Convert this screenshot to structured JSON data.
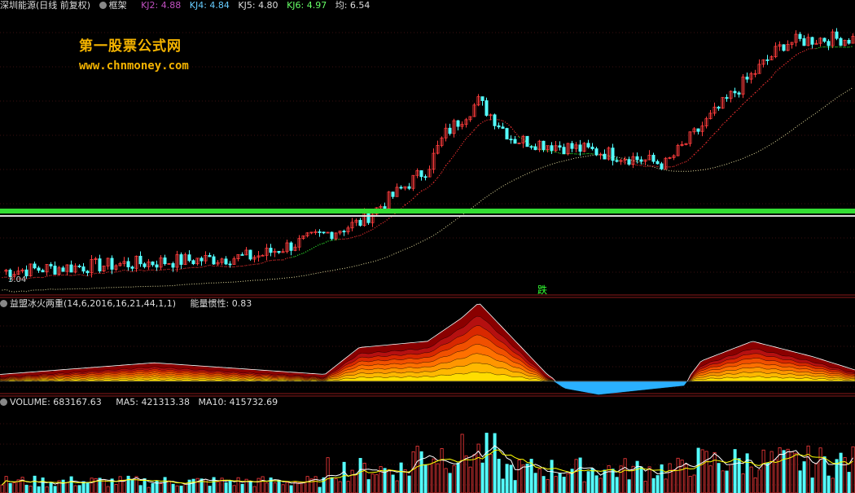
{
  "header": {
    "title": "深圳能源(日线 前复权)",
    "frame_label": "框架",
    "indicators": [
      {
        "label": "KJ2: 4.88",
        "color": "#c050c0"
      },
      {
        "label": "KJ4: 4.84",
        "color": "#6cf"
      },
      {
        "label": "KJ5: 4.80",
        "color": "#ddd"
      },
      {
        "label": "KJ6: 4.97",
        "color": "#6f6"
      },
      {
        "label": "均: 6.54",
        "color": "#ddd"
      }
    ]
  },
  "watermark": {
    "line1": "第一股票公式网",
    "line2": "www.chnmoney.com"
  },
  "price_label": "3.04",
  "signal_text": "跌",
  "mid_panel": {
    "title": "益盟冰火两重(14,6,2016,16,21,44,1,1)",
    "value_label": "能量惯性: 0.83"
  },
  "volume_panel": {
    "label": "VOLUME: 683167.63",
    "ma5": "MA5: 421313.38",
    "ma10": "MA10: 415732.69"
  },
  "colors": {
    "up": "#ff3c3c",
    "down": "#54ffff",
    "green_band": "#33dd33",
    "separator": "#8b1a1a"
  },
  "chart_data": [
    {
      "type": "candlestick",
      "y_anchors": [
        [
          0,
          3.04
        ],
        [
          0.3,
          3.4
        ],
        [
          0.42,
          4.2
        ],
        [
          0.5,
          5.5
        ],
        [
          0.52,
          6.3
        ],
        [
          0.56,
          7.1
        ],
        [
          0.6,
          6.2
        ],
        [
          0.7,
          5.9
        ],
        [
          0.78,
          5.6
        ],
        [
          0.86,
          7.3
        ],
        [
          0.92,
          8.5
        ],
        [
          0.96,
          8.6
        ],
        [
          1.0,
          8.6
        ]
      ],
      "moving_average_note": "red dotted trend line, green dotted segments, yellow dotted long MA",
      "reference_line": 4.97
    },
    {
      "type": "area",
      "segments": [
        [
          0,
          0.05
        ],
        [
          0.18,
          0.18
        ],
        [
          0.38,
          0.05
        ],
        [
          0.42,
          0.35
        ],
        [
          0.5,
          0.42
        ],
        [
          0.54,
          0.68
        ],
        [
          0.56,
          0.85
        ],
        [
          0.6,
          0.45
        ],
        [
          0.64,
          0.05
        ],
        [
          0.66,
          -0.08
        ],
        [
          0.7,
          -0.15
        ],
        [
          0.8,
          -0.05
        ],
        [
          0.82,
          0.2
        ],
        [
          0.88,
          0.42
        ],
        [
          0.95,
          0.25
        ],
        [
          1.0,
          0.1
        ]
      ]
    },
    {
      "type": "bar",
      "title": "VOLUME",
      "ylim": [
        0,
        700000
      ]
    }
  ]
}
